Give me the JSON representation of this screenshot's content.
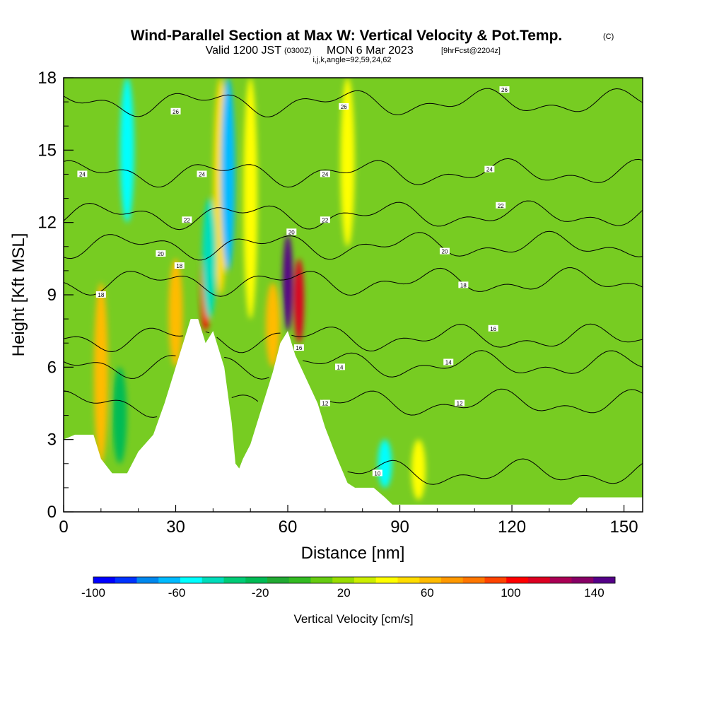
{
  "header": {
    "title": "Wind-Parallel Section at Max W: Vertical Velocity & Pot.Temp.",
    "copyright": "(C)",
    "valid_prefix": "Valid 1200 JST",
    "valid_utc": "(0300Z)",
    "valid_date": "MON 6 Mar 2023",
    "forecast": "[9hrFcst@2204z]",
    "indices": "i,j,k,angle=92,59,24,62"
  },
  "colors": {
    "vv_scale": [
      "#0000ff",
      "#0033ff",
      "#0088ee",
      "#00bbff",
      "#00ffff",
      "#00ddbb",
      "#00cc77",
      "#00bb55",
      "#22aa33",
      "#33bb22",
      "#66cc11",
      "#99dd00",
      "#ccee00",
      "#ffff00",
      "#ffdd00",
      "#ffbb00",
      "#ff9900",
      "#ff7700",
      "#ff4400",
      "#ff0000",
      "#dd0022",
      "#aa0055",
      "#880066",
      "#550088"
    ],
    "terrain": "#ffffff",
    "contour": "#000000"
  },
  "chart_data": {
    "type": "heatmap",
    "xlabel": "Distance [nm]",
    "ylabel": "Height [Kft MSL]",
    "xlim": [
      0,
      155
    ],
    "ylim": [
      0,
      18
    ],
    "xticks": [
      "0",
      "30",
      "60",
      "90",
      "120",
      "150"
    ],
    "yticks": [
      "0",
      "3",
      "6",
      "9",
      "12",
      "15",
      "18"
    ],
    "colorbar": {
      "label": "Vertical Velocity [cm/s]",
      "range": [
        -100,
        150
      ],
      "tick_labels": [
        "-100",
        "-60",
        "-20",
        "20",
        "60",
        "100",
        "140"
      ]
    },
    "terrain_profile": [
      [
        0,
        3.0
      ],
      [
        3,
        3.2
      ],
      [
        8,
        3.2
      ],
      [
        10,
        2.2
      ],
      [
        12,
        1.8
      ],
      [
        13,
        1.6
      ],
      [
        17,
        1.6
      ],
      [
        20,
        2.5
      ],
      [
        24,
        3.2
      ],
      [
        27,
        4.5
      ],
      [
        30,
        6.0
      ],
      [
        32,
        7.0
      ],
      [
        34,
        8.0
      ],
      [
        36,
        8.0
      ],
      [
        38,
        7.0
      ],
      [
        40,
        7.5
      ],
      [
        43,
        6.0
      ],
      [
        45,
        3.7
      ],
      [
        46,
        2.0
      ],
      [
        47,
        1.8
      ],
      [
        48,
        2.2
      ],
      [
        50,
        2.8
      ],
      [
        52,
        3.8
      ],
      [
        54,
        4.8
      ],
      [
        56,
        5.8
      ],
      [
        58,
        7.0
      ],
      [
        60,
        7.5
      ],
      [
        62,
        6.5
      ],
      [
        65,
        5.5
      ],
      [
        68,
        4.5
      ],
      [
        70,
        3.5
      ],
      [
        73,
        2.3
      ],
      [
        76,
        1.2
      ],
      [
        78,
        1.0
      ],
      [
        80,
        1.0
      ],
      [
        83,
        1.0
      ],
      [
        86,
        0.6
      ],
      [
        88,
        0.3
      ],
      [
        100,
        0.3
      ],
      [
        136,
        0.3
      ],
      [
        138,
        0.6
      ],
      [
        155,
        0.6
      ]
    ],
    "theta_contours": [
      {
        "label": "10",
        "height_at": [
          [
            84,
            1.6
          ]
        ]
      },
      {
        "label": "12",
        "height_at": [
          [
            70,
            4.5
          ],
          [
            106,
            4.5
          ]
        ]
      },
      {
        "label": "14",
        "height_at": [
          [
            74,
            6.0
          ],
          [
            103,
            6.2
          ]
        ]
      },
      {
        "label": "16",
        "height_at": [
          [
            63,
            6.8
          ],
          [
            115,
            7.6
          ]
        ]
      },
      {
        "label": "18",
        "height_at": [
          [
            10,
            9.0
          ],
          [
            31,
            10.2
          ],
          [
            107,
            9.4
          ]
        ]
      },
      {
        "label": "20",
        "height_at": [
          [
            26,
            10.7
          ],
          [
            61,
            11.6
          ],
          [
            102,
            10.8
          ]
        ]
      },
      {
        "label": "22",
        "height_at": [
          [
            33,
            12.1
          ],
          [
            70,
            12.1
          ],
          [
            117,
            12.7
          ]
        ]
      },
      {
        "label": "24",
        "height_at": [
          [
            5,
            14.0
          ],
          [
            37,
            14.0
          ],
          [
            70,
            14.0
          ],
          [
            114,
            14.2
          ]
        ]
      },
      {
        "label": "26",
        "height_at": [
          [
            30,
            16.6
          ],
          [
            75,
            16.8
          ],
          [
            118,
            17.5
          ]
        ]
      }
    ],
    "vertical_velocity_features": [
      {
        "x": 10,
        "bottom": 2,
        "top": 9.5,
        "value": 60
      },
      {
        "x": 30,
        "bottom": 6,
        "top": 10.5,
        "value": 60
      },
      {
        "x": 38,
        "bottom": 7.5,
        "top": 11,
        "value": 100
      },
      {
        "x": 42,
        "bottom": 9,
        "top": 18,
        "value": 50
      },
      {
        "x": 50,
        "bottom": 8,
        "top": 18,
        "value": 45
      },
      {
        "x": 56,
        "bottom": 6,
        "top": 9.5,
        "value": 60
      },
      {
        "x": 60,
        "bottom": 7.5,
        "top": 11.5,
        "value": 140
      },
      {
        "x": 63,
        "bottom": 7,
        "top": 10.5,
        "value": 110
      },
      {
        "x": 76,
        "bottom": 11,
        "top": 18,
        "value": 40
      },
      {
        "x": 95,
        "bottom": 0.5,
        "top": 3,
        "value": 40
      },
      {
        "x": 44,
        "bottom": 10,
        "top": 18,
        "value": -60
      },
      {
        "x": 17,
        "bottom": 12,
        "top": 18,
        "value": -50
      },
      {
        "x": 39,
        "bottom": 8,
        "top": 13,
        "value": -40
      },
      {
        "x": 86,
        "bottom": 1,
        "top": 3,
        "value": -50
      },
      {
        "x": 15,
        "bottom": 2,
        "top": 6,
        "value": -20
      }
    ]
  }
}
